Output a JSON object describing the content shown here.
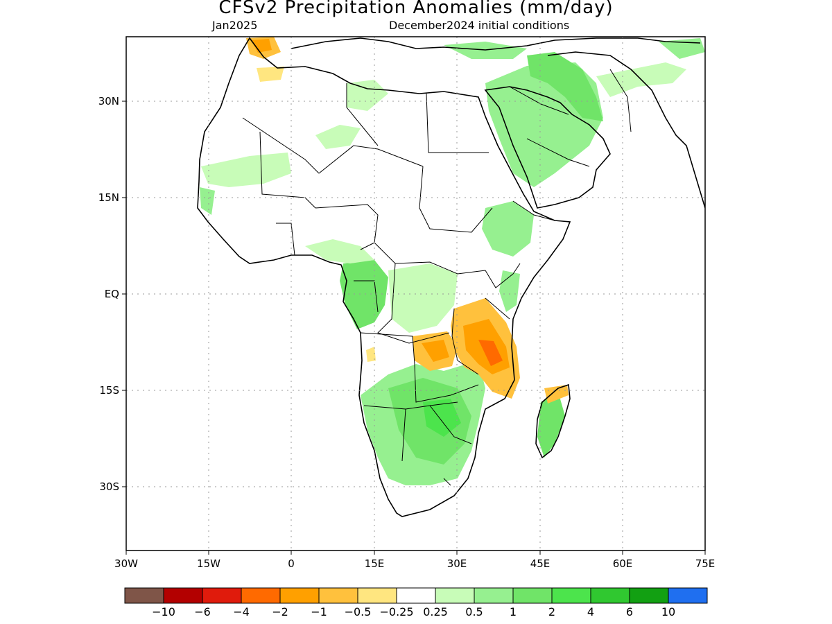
{
  "header": {
    "title": "CFSv2 Precipitation Anomalies (mm/day)",
    "valid_month": "Jan2025",
    "initial_conditions": "December2024 initial conditions"
  },
  "map": {
    "region": "Africa",
    "lon_range": [
      -30,
      75
    ],
    "lat_range": [
      -40,
      40
    ],
    "grid": "dotted",
    "y_ticks": [
      "30N",
      "15N",
      "EQ",
      "15S",
      "30S"
    ],
    "x_ticks": [
      "30W",
      "15W",
      "0",
      "15E",
      "30E",
      "45E",
      "60E",
      "75E"
    ]
  },
  "colorbar": {
    "colors": [
      "#7f5548",
      "#b30000",
      "#e01b0c",
      "#ff6a00",
      "#ffa000",
      "#ffc13d",
      "#ffe680",
      "#ffffff",
      "#c8fcb8",
      "#96f090",
      "#70e468",
      "#4ce44c",
      "#30c830",
      "#12a012",
      "#1f6ff0"
    ],
    "labels": [
      "−10",
      "−6",
      "−4",
      "−2",
      "−1",
      "−0.5",
      "−0.25",
      "0.25",
      "0.5",
      "1",
      "2",
      "4",
      "6",
      "10"
    ]
  }
}
